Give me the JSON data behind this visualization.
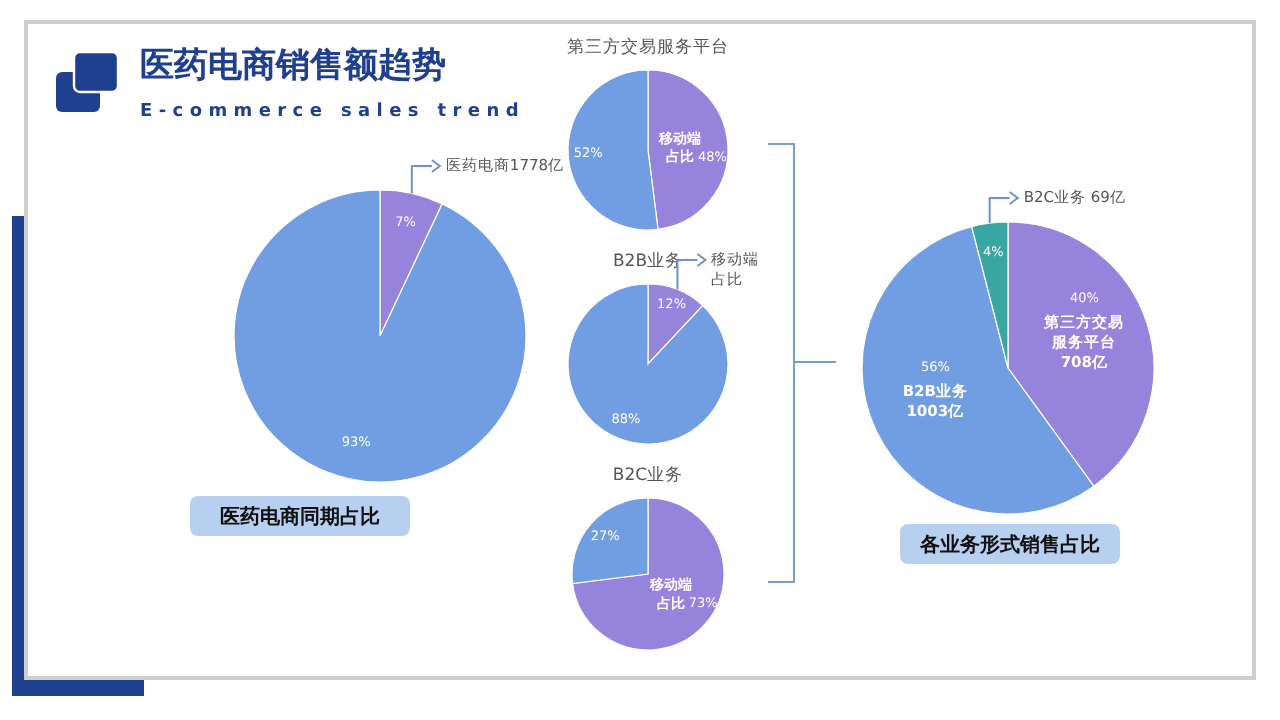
{
  "chart_data": [
    {
      "type": "pie",
      "title": "医药电商销售额趋势",
      "subtitle": "E-commerce sales trend",
      "categories": [
        "医药电商1778亿",
        null
      ],
      "values": [
        7,
        93
      ],
      "colors": [
        "#9583dc",
        "#719ee2"
      ],
      "value_labels": [
        "7%",
        "93%"
      ],
      "annotations": [
        "医药电商同期占比"
      ]
    },
    {
      "type": "pie",
      "title": "第三方交易服务平台",
      "categories": [
        "移动端占比",
        null
      ],
      "values": [
        48,
        52
      ],
      "colors": [
        "#9583dc",
        "#719ee2"
      ],
      "value_labels": [
        "48%",
        "52%"
      ]
    },
    {
      "type": "pie",
      "title": "B2B业务",
      "categories": [
        "移动端占比",
        null
      ],
      "values": [
        12,
        88
      ],
      "colors": [
        "#9583dc",
        "#719ee2"
      ],
      "value_labels": [
        "12%",
        "88%"
      ]
    },
    {
      "type": "pie",
      "title": "B2C业务",
      "categories": [
        "移动端占比",
        null
      ],
      "values": [
        73,
        27
      ],
      "colors": [
        "#9583dc",
        "#719ee2"
      ],
      "value_labels": [
        "73%",
        "27%"
      ]
    },
    {
      "type": "pie",
      "categories": [
        "第三方交易服务平台708亿",
        "B2B业务1003亿",
        "B2C业务 69亿"
      ],
      "values": [
        40,
        56,
        4
      ],
      "colors": [
        "#9583dc",
        "#719ee2",
        "#3aa6a2"
      ],
      "value_labels": [
        "40%",
        "56%",
        "4%"
      ],
      "annotations": [
        "各业务形式销售占比"
      ]
    }
  ]
}
